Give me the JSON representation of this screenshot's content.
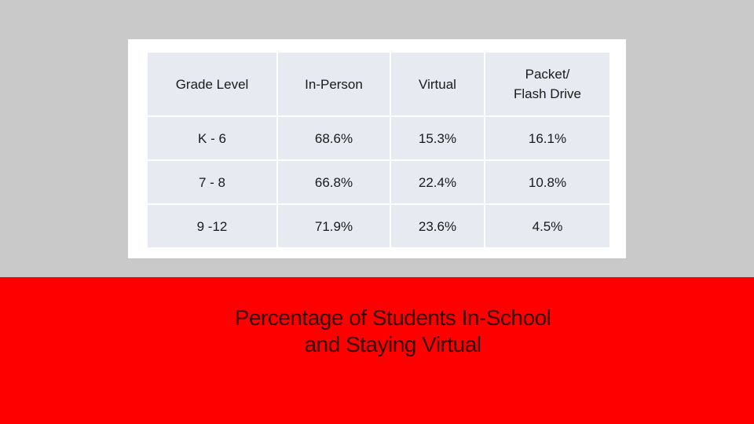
{
  "table": {
    "headers": [
      "Grade Level",
      "In-Person",
      "Virtual",
      "Packet/\nFlash Drive"
    ],
    "header_packet_line1": "Packet/",
    "header_packet_line2": "Flash Drive",
    "rows": [
      [
        "K - 6",
        "68.6%",
        "15.3%",
        "16.1%"
      ],
      [
        "7 - 8",
        "66.8%",
        "22.4%",
        "10.8%"
      ],
      [
        "9 -12",
        "71.9%",
        "23.6%",
        "4.5%"
      ]
    ]
  },
  "title": {
    "line1": "Percentage of Students In-School",
    "line2": "and Staying Virtual"
  },
  "colors": {
    "background_gray": "#c8c9c8",
    "accent_red": "#fe0000",
    "cell_fill": "#e8eaf2"
  }
}
